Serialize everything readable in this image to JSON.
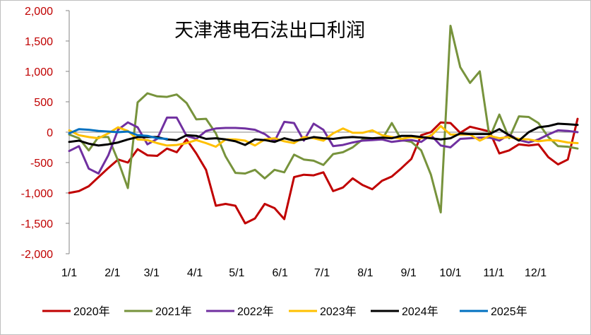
{
  "chart_data": {
    "type": "line",
    "title": "天津港电石法出口利润",
    "xlabel": "",
    "ylabel": "",
    "ylim": [
      -2000,
      2000
    ],
    "yticks": [
      2000,
      1500,
      1000,
      500,
      0,
      -500,
      -1000,
      -1500,
      -2000
    ],
    "ytick_labels": [
      "2,000",
      "1,500",
      "1,000",
      "500",
      "0",
      "-500",
      "-1,000",
      "-1,500",
      "-2,000"
    ],
    "xlim": [
      1,
      53
    ],
    "xticks": [
      1,
      5.43,
      9.43,
      13.86,
      18.14,
      22.57,
      26.86,
      31.29,
      35.71,
      40,
      44.43,
      48.71
    ],
    "xtick_labels": [
      "1/1",
      "2/1",
      "3/1",
      "4/1",
      "5/1",
      "6/1",
      "7/1",
      "8/1",
      "9/1",
      "10/1",
      "11/1",
      "12/1"
    ],
    "grid": false,
    "legend_position": "bottom",
    "series": [
      {
        "name": "2020年",
        "color": "#c00000",
        "x": [
          1,
          2,
          3,
          4,
          5,
          6,
          7,
          8,
          9,
          10,
          11,
          12,
          13,
          14,
          15,
          16,
          17,
          18,
          19,
          20,
          21,
          22,
          23,
          24,
          25,
          26,
          27,
          28,
          29,
          30,
          31,
          32,
          33,
          34,
          35,
          36,
          37,
          38,
          39,
          40,
          41,
          42,
          43,
          44,
          45,
          46,
          47,
          48,
          49,
          50,
          51,
          52,
          53
        ],
        "values": [
          -1000,
          -970,
          -890,
          -740,
          -590,
          -450,
          -500,
          -280,
          -380,
          -390,
          -270,
          -330,
          -120,
          -350,
          -620,
          -1210,
          -1180,
          -1210,
          -1500,
          -1420,
          -1180,
          -1250,
          -1430,
          -740,
          -700,
          -710,
          -660,
          -970,
          -910,
          -760,
          -870,
          -940,
          -800,
          -730,
          -590,
          -440,
          -50,
          0,
          160,
          150,
          -10,
          90,
          50,
          10,
          -350,
          -300,
          -200,
          -220,
          -200,
          -410,
          -530,
          -450,
          220
        ]
      },
      {
        "name": "2021年",
        "color": "#77933c",
        "x": [
          1,
          2,
          3,
          4,
          5,
          6,
          7,
          8,
          9,
          10,
          11,
          12,
          13,
          14,
          15,
          16,
          17,
          18,
          19,
          20,
          21,
          22,
          23,
          24,
          25,
          26,
          27,
          28,
          29,
          30,
          31,
          32,
          33,
          34,
          35,
          36,
          37,
          38,
          39,
          40,
          41,
          42,
          43,
          44,
          45,
          46,
          47,
          48,
          49,
          50,
          51,
          52,
          53
        ],
        "values": [
          -40,
          -100,
          -300,
          -80,
          -80,
          -470,
          -920,
          490,
          640,
          590,
          580,
          620,
          480,
          210,
          220,
          -20,
          -400,
          -670,
          -680,
          -620,
          -760,
          -620,
          -660,
          -370,
          -450,
          -470,
          -540,
          -360,
          -330,
          -250,
          -120,
          -120,
          -120,
          150,
          -130,
          -160,
          -300,
          -700,
          -1320,
          1750,
          1070,
          810,
          1000,
          -90,
          290,
          -100,
          260,
          250,
          150,
          -80,
          -230,
          -240,
          -270
        ]
      },
      {
        "name": "2022年",
        "color": "#7030a0",
        "x": [
          1,
          2,
          3,
          4,
          5,
          6,
          7,
          8,
          9,
          10,
          11,
          12,
          13,
          14,
          15,
          16,
          17,
          18,
          19,
          20,
          21,
          22,
          23,
          24,
          25,
          26,
          27,
          28,
          29,
          30,
          31,
          32,
          33,
          34,
          35,
          36,
          37,
          38,
          39,
          40,
          41,
          42,
          43,
          44,
          45,
          46,
          47,
          48,
          49,
          50,
          51,
          52,
          53
        ],
        "values": [
          -310,
          -230,
          -600,
          -680,
          -380,
          40,
          160,
          80,
          -200,
          -110,
          240,
          240,
          -60,
          -110,
          20,
          60,
          70,
          70,
          60,
          40,
          -30,
          -150,
          170,
          150,
          -140,
          140,
          40,
          -230,
          -210,
          -170,
          -140,
          -130,
          -120,
          -160,
          -140,
          -130,
          -160,
          -50,
          -220,
          -250,
          -110,
          -100,
          -90,
          -90,
          -140,
          -40,
          -130,
          -170,
          -120,
          -40,
          30,
          20,
          0
        ]
      },
      {
        "name": "2023年",
        "color": "#ffc000",
        "x": [
          1,
          2,
          3,
          4,
          5,
          6,
          7,
          8,
          9,
          10,
          11,
          12,
          13,
          14,
          15,
          16,
          17,
          18,
          19,
          20,
          21,
          22,
          23,
          24,
          25,
          26,
          27,
          28,
          29,
          30,
          31,
          32,
          33,
          34,
          35,
          36,
          37,
          38,
          39,
          40,
          41,
          42,
          43,
          44,
          45,
          46,
          47,
          48,
          49,
          50,
          51,
          52,
          53
        ],
        "values": [
          30,
          -50,
          -80,
          -100,
          -20,
          80,
          20,
          -120,
          -130,
          -180,
          -220,
          -210,
          -180,
          -130,
          -180,
          -240,
          -120,
          -120,
          -140,
          -220,
          -120,
          -100,
          -150,
          -180,
          -80,
          -100,
          -140,
          -20,
          60,
          -10,
          -10,
          30,
          -50,
          -80,
          -110,
          -80,
          -100,
          -60,
          100,
          -40,
          -40,
          -40,
          -140,
          -60,
          -100,
          -80,
          -110,
          -120,
          -150,
          -130,
          -140,
          -170,
          -180
        ]
      },
      {
        "name": "2024年",
        "color": "#000000",
        "x": [
          1,
          2,
          3,
          4,
          5,
          6,
          7,
          8,
          9,
          10,
          11,
          12,
          13,
          14,
          15,
          16,
          17,
          18,
          19,
          20,
          21,
          22,
          23,
          24,
          25,
          26,
          27,
          28,
          29,
          30,
          31,
          32,
          33,
          34,
          35,
          36,
          37,
          38,
          39,
          40,
          41,
          42,
          43,
          44,
          45,
          46,
          47,
          48,
          49,
          50,
          51,
          52,
          53
        ],
        "values": [
          -160,
          -140,
          -190,
          -220,
          -200,
          -170,
          -120,
          -80,
          -80,
          -80,
          -120,
          -130,
          -50,
          -60,
          -110,
          -100,
          -120,
          -150,
          -210,
          -120,
          -130,
          -160,
          -100,
          -140,
          -120,
          -80,
          -100,
          -110,
          -90,
          -80,
          -90,
          -100,
          -90,
          -100,
          -60,
          -60,
          -80,
          -100,
          -120,
          -100,
          -20,
          -30,
          -30,
          -30,
          50,
          -50,
          -140,
          0,
          80,
          100,
          140,
          130,
          120
        ]
      },
      {
        "name": "2025年",
        "color": "#0070c0",
        "x": [
          1,
          2,
          3,
          4,
          5,
          6,
          7,
          8,
          9,
          10,
          11
        ],
        "values": [
          -20,
          50,
          40,
          20,
          10,
          0,
          10,
          -50,
          -60,
          -100,
          -110
        ]
      }
    ]
  }
}
